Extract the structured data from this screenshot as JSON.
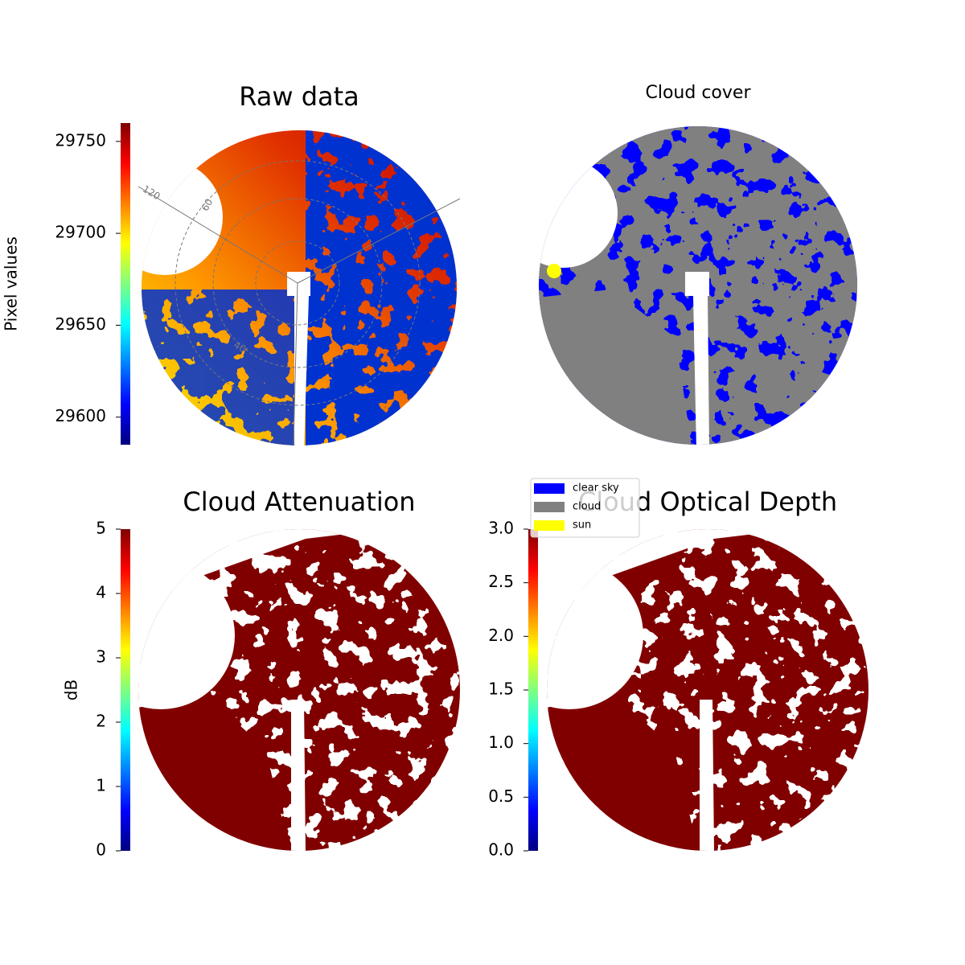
{
  "chart_data": [
    {
      "type": "image",
      "title": "Raw data",
      "colorbar": {
        "label": "Pixel values",
        "colormap": "jet",
        "lim": [
          29585,
          29760
        ],
        "ticks": [
          29600,
          29650,
          29700,
          29750
        ]
      },
      "annotations": [
        "120",
        "60",
        "40"
      ]
    },
    {
      "type": "image",
      "title": "Cloud cover",
      "legend": [
        {
          "name": "clear sky",
          "color": "#0000ff"
        },
        {
          "name": "cloud",
          "color": "#808080"
        },
        {
          "name": "sun",
          "color": "#ffff00"
        }
      ]
    },
    {
      "type": "image",
      "title": "Cloud Attenuation",
      "colorbar": {
        "label": "dB",
        "colormap": "jet",
        "lim": [
          0,
          5
        ],
        "ticks": [
          0,
          1,
          2,
          3,
          4,
          5
        ]
      }
    },
    {
      "type": "image",
      "title": "Cloud Optical Depth",
      "colorbar": {
        "colormap": "jet",
        "lim": [
          0,
          3
        ],
        "ticks": [
          {
            "value": 0,
            "label": "0.0"
          },
          {
            "value": 0.5,
            "label": "0.5"
          },
          {
            "value": 1,
            "label": "1.0"
          },
          {
            "value": 1.5,
            "label": "1.5"
          },
          {
            "value": 2,
            "label": "2.0"
          },
          {
            "value": 2.5,
            "label": "2.5"
          },
          {
            "value": 3,
            "label": "3.0"
          }
        ]
      }
    }
  ]
}
